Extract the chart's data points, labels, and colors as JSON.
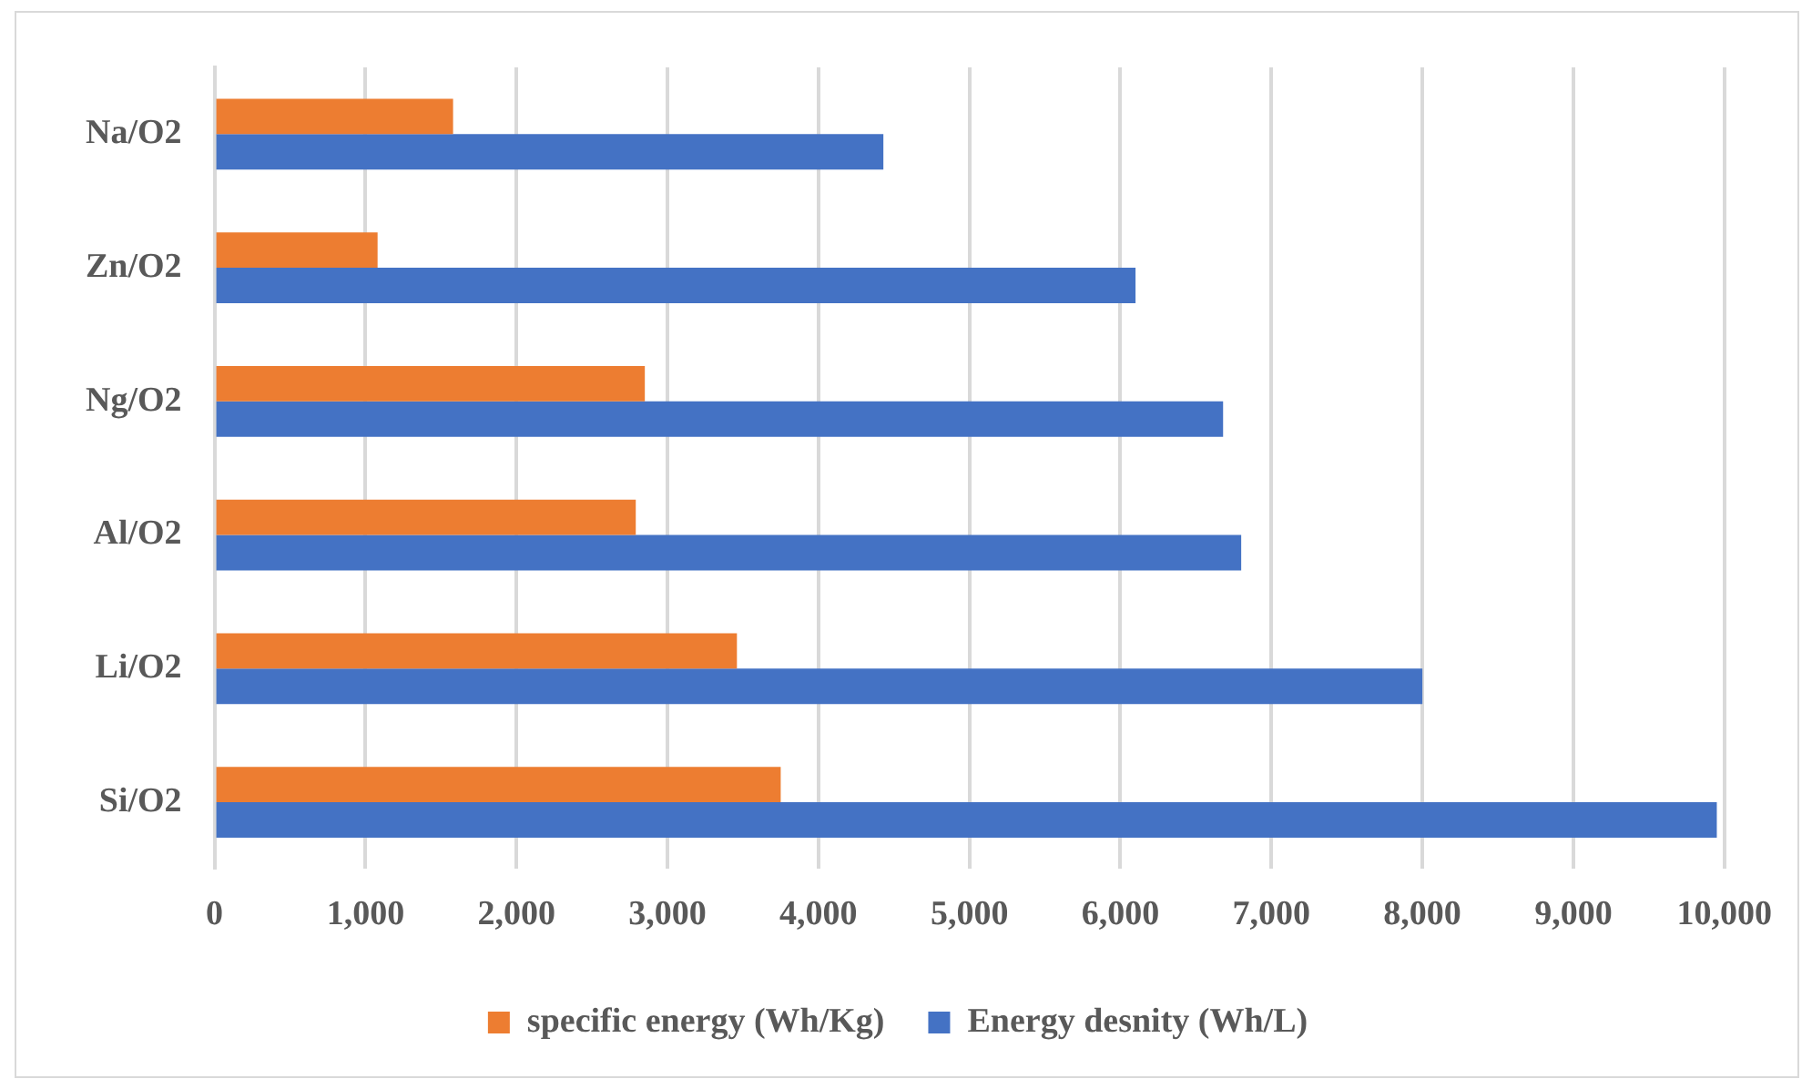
{
  "chart_data": {
    "type": "bar",
    "orientation": "horizontal",
    "categories": [
      "Na/O2",
      "Zn/O2",
      "Ng/O2",
      "Al/O2",
      "Li/O2",
      "Si/O2"
    ],
    "series": [
      {
        "name": "specific energy (Wh/Kg)",
        "color": "#ed7d31",
        "values": [
          1580,
          1080,
          2850,
          2790,
          3460,
          3750
        ]
      },
      {
        "name": "Energy desnity (Wh/L)",
        "color": "#4472c4",
        "values": [
          4430,
          6100,
          6680,
          6800,
          8000,
          9950
        ]
      }
    ],
    "xlim": [
      0,
      10000
    ],
    "xticks": [
      0,
      {
        "value": 1000,
        "label": "1,000"
      },
      {
        "value": 2000,
        "label": "2,000"
      },
      {
        "value": 3000,
        "label": "3,000"
      },
      {
        "value": 4000,
        "label": "4,000"
      },
      {
        "value": 5000,
        "label": "5,000"
      },
      {
        "value": 6000,
        "label": "6,000"
      },
      {
        "value": 7000,
        "label": "7,000"
      },
      {
        "value": 8000,
        "label": "8,000"
      },
      {
        "value": 9000,
        "label": "9,000"
      },
      {
        "value": 10000,
        "label": "10,000"
      }
    ],
    "grid": "x",
    "legend": "bottom"
  }
}
